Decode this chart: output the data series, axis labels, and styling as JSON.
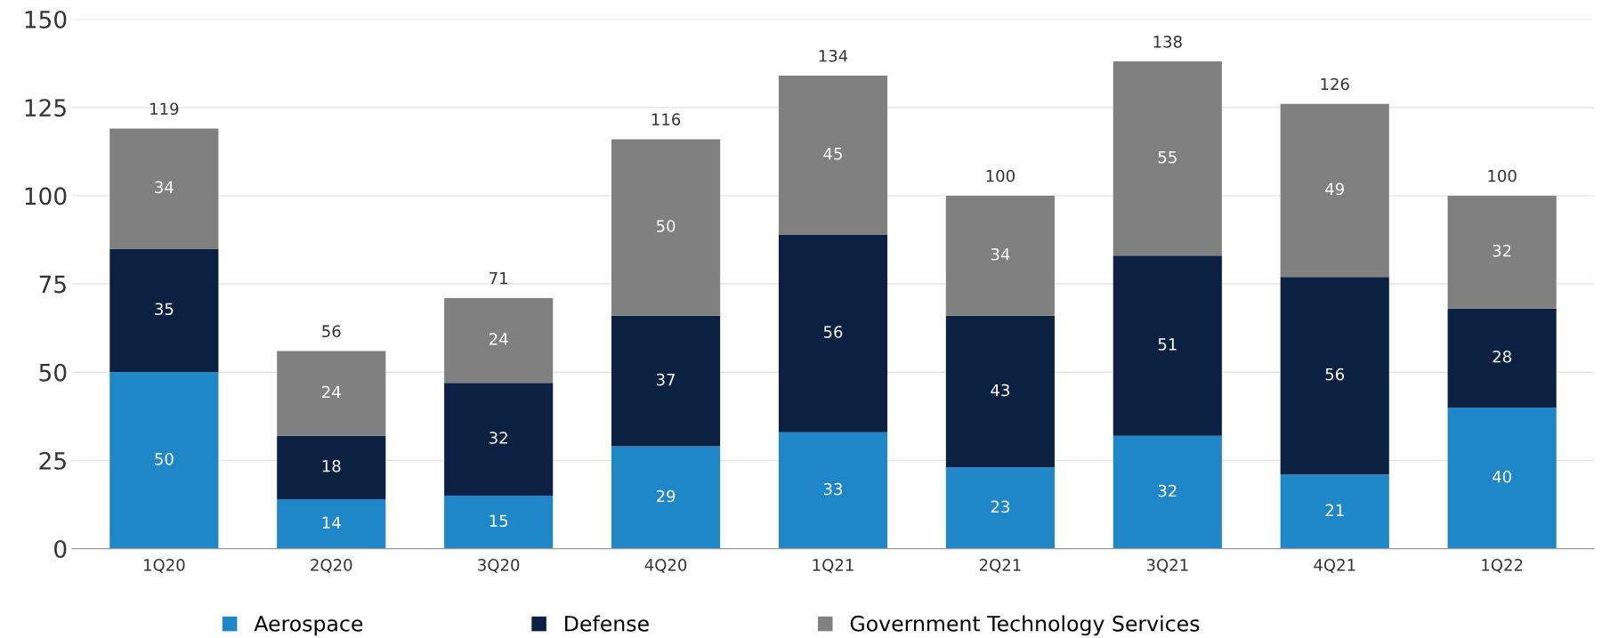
{
  "chart_data": {
    "type": "bar",
    "stacked": true,
    "categories": [
      "1Q20",
      "2Q20",
      "3Q20",
      "4Q20",
      "1Q21",
      "2Q21",
      "3Q21",
      "4Q21",
      "1Q22"
    ],
    "series": [
      {
        "name": "Aerospace",
        "color": "#1f86c8",
        "values": [
          50,
          14,
          15,
          29,
          33,
          23,
          32,
          21,
          40
        ]
      },
      {
        "name": "Defense",
        "color": "#0c2142",
        "values": [
          35,
          18,
          32,
          37,
          56,
          43,
          51,
          56,
          28
        ]
      },
      {
        "name": "Government Technology Services",
        "color": "#808080",
        "values": [
          34,
          24,
          24,
          50,
          45,
          34,
          55,
          49,
          32
        ]
      }
    ],
    "totals": [
      "119",
      "56",
      "71",
      "116",
      "134",
      "100",
      "138",
      "126",
      "100"
    ],
    "data_labels": true,
    "ylim": [
      0,
      150
    ],
    "yticks": [
      0,
      25,
      50,
      75,
      100,
      125,
      150
    ],
    "grid": "y",
    "legend": "bottom"
  }
}
